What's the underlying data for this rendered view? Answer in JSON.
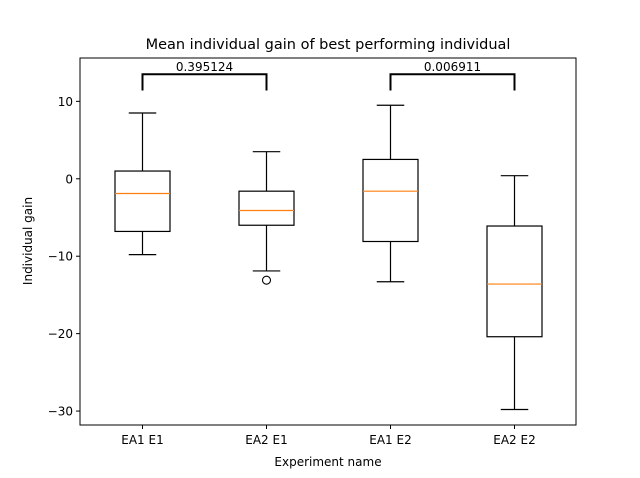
{
  "chart_data": {
    "type": "boxplot",
    "title": "Mean individual gain of best performing individual",
    "xlabel": "Experiment name",
    "ylabel": "Individual gain",
    "ylim": [
      -31.8,
      15.6
    ],
    "yticks": [
      10,
      0,
      -10,
      -20,
      -30
    ],
    "ytick_labels": [
      "10",
      "0",
      "−10",
      "−20",
      "−30"
    ],
    "categories": [
      "EA1 E1",
      "EA2 E1",
      "EA1 E2",
      "EA2 E2"
    ],
    "boxes": [
      {
        "name": "EA1 E1",
        "whisker_low": -9.8,
        "q1": -6.8,
        "median": -1.9,
        "q3": 1.0,
        "whisker_high": 8.5,
        "outliers": []
      },
      {
        "name": "EA2 E1",
        "whisker_low": -11.9,
        "q1": -6.0,
        "median": -4.1,
        "q3": -1.6,
        "whisker_high": 3.5,
        "outliers": [
          -13.1
        ]
      },
      {
        "name": "EA1 E2",
        "whisker_low": -13.3,
        "q1": -8.1,
        "median": -1.6,
        "q3": 2.5,
        "whisker_high": 9.5,
        "outliers": []
      },
      {
        "name": "EA2 E2",
        "whisker_low": -29.8,
        "q1": -20.4,
        "median": -13.6,
        "q3": -6.1,
        "whisker_high": 0.4,
        "outliers": []
      }
    ],
    "annotations": [
      {
        "from": "EA1 E1",
        "to": "EA2 E1",
        "label": "0.395124",
        "y": 13.5
      },
      {
        "from": "EA1 E2",
        "to": "EA2 E2",
        "label": "0.006911",
        "y": 13.5
      }
    ],
    "colors": {
      "box": "#000000",
      "median": "#ff7f0e",
      "background": "#ffffff"
    },
    "grid": false
  }
}
